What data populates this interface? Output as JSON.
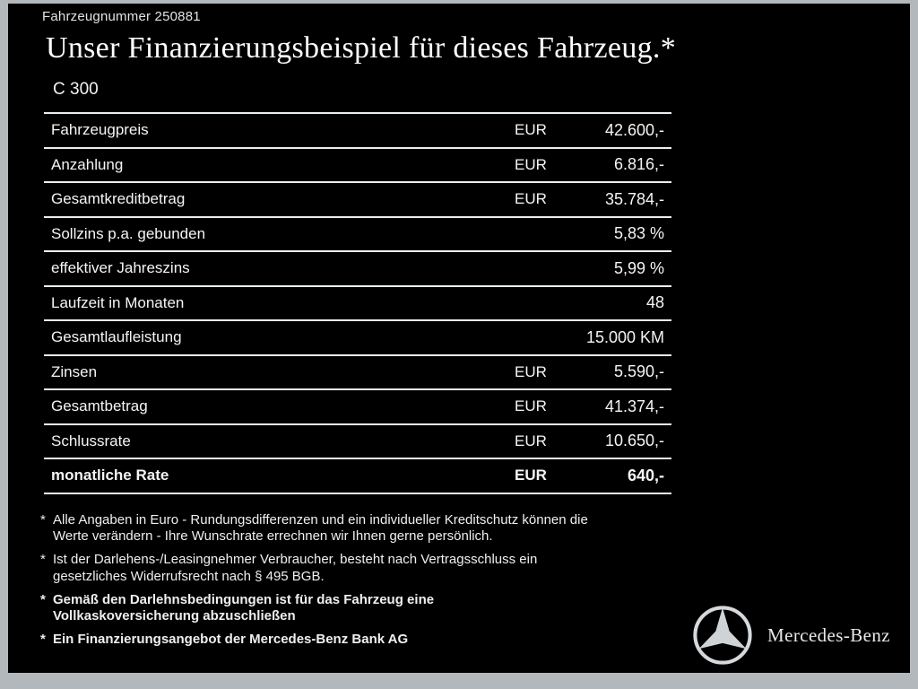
{
  "header": {
    "vehicle_number": "Fahrzeugnummer 250881",
    "title": "Unser Finanzierungsbeispiel für dieses Fahrzeug.*",
    "model": "C 300"
  },
  "table": {
    "rows": [
      {
        "label": "Fahrzeugpreis",
        "currency": "EUR",
        "value": "42.600,-",
        "bold": false
      },
      {
        "label": "Anzahlung",
        "currency": "EUR",
        "value": "6.816,-",
        "bold": false
      },
      {
        "label": "Gesamtkreditbetrag",
        "currency": "EUR",
        "value": "35.784,-",
        "bold": false
      },
      {
        "label": "Sollzins p.a. gebunden",
        "currency": "",
        "value": "5,83 %",
        "bold": false
      },
      {
        "label": "effektiver Jahreszins",
        "currency": "",
        "value": "5,99 %",
        "bold": false
      },
      {
        "label": "Laufzeit in Monaten",
        "currency": "",
        "value": "48",
        "bold": false
      },
      {
        "label": "Gesamtlaufleistung",
        "currency": "",
        "value": "15.000 KM",
        "bold": false
      },
      {
        "label": "Zinsen",
        "currency": "EUR",
        "value": "5.590,-",
        "bold": false
      },
      {
        "label": "Gesamtbetrag",
        "currency": "EUR",
        "value": "41.374,-",
        "bold": false
      },
      {
        "label": "Schlussrate",
        "currency": "EUR",
        "value": "10.650,-",
        "bold": false
      },
      {
        "label": "monatliche Rate",
        "currency": "EUR",
        "value": "640,-",
        "bold": true
      }
    ]
  },
  "footnotes": [
    {
      "marker": "*",
      "bold": false,
      "lines": [
        "Alle Angaben in Euro - Rundungsdifferenzen und ein individueller Kreditschutz können die",
        "Werte verändern - Ihre Wunschrate errechnen wir Ihnen gerne persönlich."
      ]
    },
    {
      "marker": "*",
      "bold": false,
      "lines": [
        "Ist der Darlehens-/Leasingnehmer Verbraucher, besteht nach Vertragsschluss ein",
        "gesetzliches Widerrufsrecht nach § 495 BGB."
      ]
    },
    {
      "marker": "*",
      "bold": true,
      "lines": [
        "Gemäß den Darlehnsbedingungen ist für das Fahrzeug eine",
        "Vollkaskoversicherung abzuschließen"
      ]
    },
    {
      "marker": "*",
      "bold": true,
      "lines": [
        "Ein Finanzierungsangebot der Mercedes-Benz Bank AG"
      ]
    }
  ],
  "brand": {
    "logo_icon": "mercedes-star-icon",
    "name": "Mercedes-Benz"
  },
  "colors": {
    "background": "#000000",
    "frame": "#b3b8bc",
    "text": "#f5f5f5",
    "table_line": "#e9eef3",
    "logo_silver": "#cfd3d6"
  }
}
